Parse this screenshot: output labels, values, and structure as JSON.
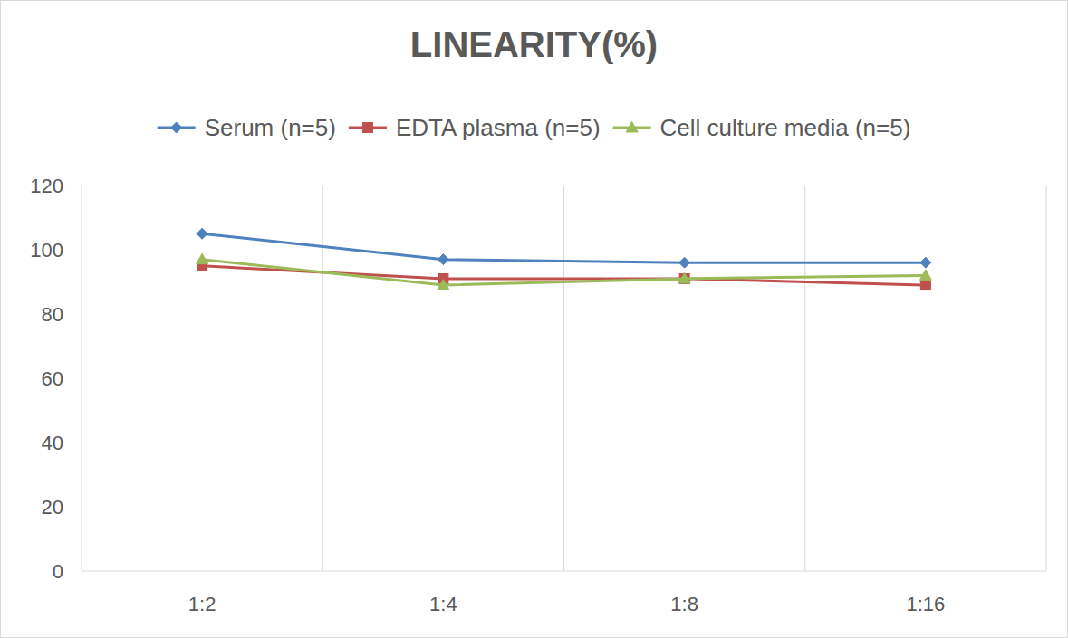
{
  "chart_data": {
    "type": "line",
    "title": "LINEARITY(%)",
    "categories": [
      "1:2",
      "1:4",
      "1:8",
      "1:16"
    ],
    "series": [
      {
        "name": "Serum (n=5)",
        "color": "#4f81bd",
        "marker": "diamond",
        "values": [
          105,
          97,
          96,
          96
        ]
      },
      {
        "name": "EDTA plasma (n=5)",
        "color": "#c0504d",
        "marker": "square",
        "values": [
          95,
          91,
          91,
          89
        ]
      },
      {
        "name": "Cell culture media (n=5)",
        "color": "#9bbb59",
        "marker": "triangle",
        "values": [
          97,
          89,
          91,
          92
        ]
      }
    ],
    "ylim": [
      0,
      120
    ],
    "yticks": [
      0,
      20,
      40,
      60,
      80,
      100,
      120
    ],
    "grid": true,
    "legend": "top"
  }
}
